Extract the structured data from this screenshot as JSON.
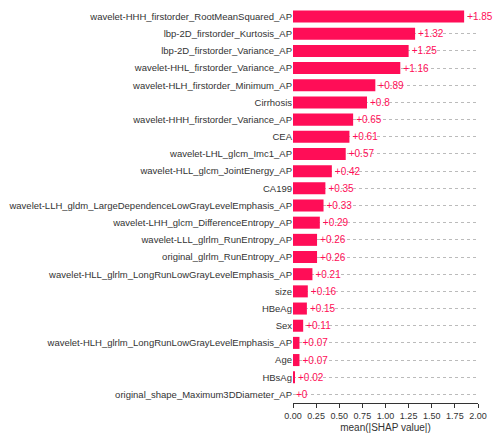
{
  "chart_data": {
    "type": "bar",
    "orientation": "horizontal",
    "x_label": "mean(|SHAP value|)",
    "categories": [
      "wavelet-HHH_firstorder_RootMeanSquared_AP",
      "lbp-2D_firstorder_Kurtosis_AP",
      "lbp-2D_firstorder_Variance_AP",
      "wavelet-HHL_firstorder_Variance_AP",
      "wavelet-HLH_firstorder_Minimum_AP",
      "Cirrhosis",
      "wavelet-HHH_firstorder_Variance_AP",
      "CEA",
      "wavelet-LHL_glcm_Imc1_AP",
      "wavelet-HLL_glcm_JointEnergy_AP",
      "CA199",
      "wavelet-LLH_gldm_LargeDependenceLowGrayLevelEmphasis_AP",
      "wavelet-LHH_glcm_DifferenceEntropy_AP",
      "wavelet-LLL_glrlm_RunEntropy_AP",
      "original_glrlm_RunEntropy_AP",
      "wavelet-HLL_glrlm_LongRunLowGrayLevelEmphasis_AP",
      "size",
      "HBeAg",
      "Sex",
      "wavelet-HLH_glrlm_LongRunLowGrayLevelEmphasis_AP",
      "Age",
      "HBsAg",
      "original_shape_Maximum3DDiameter_AP"
    ],
    "values": [
      1.85,
      1.32,
      1.25,
      1.16,
      0.89,
      0.8,
      0.65,
      0.61,
      0.57,
      0.42,
      0.35,
      0.33,
      0.29,
      0.26,
      0.26,
      0.21,
      0.16,
      0.15,
      0.11,
      0.07,
      0.07,
      0.02,
      0
    ],
    "value_labels": [
      "+1.85",
      "+1.32",
      "+1.25",
      "+1.16",
      "+0.89",
      "+0.8",
      "+0.65",
      "+0.61",
      "+0.57",
      "+0.42",
      "+0.35",
      "+0.33",
      "+0.29",
      "+0.26",
      "+0.26",
      "+0.21",
      "+0.16",
      "+0.15",
      "+0.11",
      "+0.07",
      "+0.07",
      "+0.02",
      "+0"
    ],
    "data_labels": true,
    "color": "#ff0d57",
    "xlim": [
      0,
      2.0
    ],
    "xticks": [
      {
        "value": 0,
        "label": "0.00"
      },
      {
        "value": 0.25,
        "label": "0.25"
      },
      {
        "value": 0.5,
        "label": "0.50"
      },
      {
        "value": 0.75,
        "label": "0.75"
      },
      {
        "value": 1.0,
        "label": "1.00"
      },
      {
        "value": 1.25,
        "label": "1.25"
      },
      {
        "value": 1.5,
        "label": "1.50"
      },
      {
        "value": 1.75,
        "label": "1.75"
      },
      {
        "value": 2.0,
        "label": "2.00"
      }
    ],
    "grid": true
  }
}
